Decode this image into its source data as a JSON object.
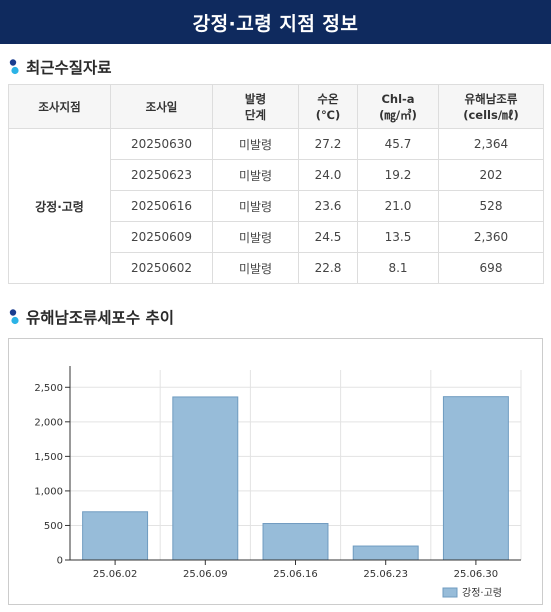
{
  "page": {
    "title": "강정·고령 지점 정보"
  },
  "sections": {
    "latest_title": "최근수질자료",
    "trend_title": "유해남조류세포수 추이"
  },
  "table": {
    "headers": [
      [
        "조사지점"
      ],
      [
        "조사일"
      ],
      [
        "발령",
        "단계"
      ],
      [
        "수온",
        "(℃)"
      ],
      [
        "Chl-a",
        "(㎎/㎥)"
      ],
      [
        "유해남조류",
        "(cells/㎖)"
      ]
    ],
    "site": "강정·고령",
    "rows": [
      {
        "date": "20250630",
        "stage": "미발령",
        "temp": "27.2",
        "chla": "45.7",
        "cells": "2,364"
      },
      {
        "date": "20250623",
        "stage": "미발령",
        "temp": "24.0",
        "chla": "19.2",
        "cells": "202"
      },
      {
        "date": "20250616",
        "stage": "미발령",
        "temp": "23.6",
        "chla": "21.0",
        "cells": "528"
      },
      {
        "date": "20250609",
        "stage": "미발령",
        "temp": "24.5",
        "chla": "13.5",
        "cells": "2,360"
      },
      {
        "date": "20250602",
        "stage": "미발령",
        "temp": "22.8",
        "chla": "8.1",
        "cells": "698"
      }
    ]
  },
  "colors": {
    "header_bg": "#0f2a5e",
    "bar_fill": "#97bcd9",
    "bar_stroke": "#6f9bc0",
    "bullet_top": "#1a3d8f",
    "bullet_bottom": "#2bb3e6"
  },
  "chart_data": {
    "type": "bar",
    "categories": [
      "25.06.02",
      "25.06.09",
      "25.06.16",
      "25.06.23",
      "25.06.30"
    ],
    "series": [
      {
        "name": "강정·고령",
        "values": [
          698,
          2360,
          528,
          202,
          2364
        ]
      }
    ],
    "yticks": [
      0,
      500,
      1000,
      1500,
      2000,
      2500
    ],
    "ytick_labels": [
      "0",
      "500",
      "1,000",
      "1,500",
      "2,000",
      "2,500"
    ],
    "ylim": [
      0,
      2750
    ],
    "grid": true,
    "legend_position": "bottom-right",
    "title": "",
    "xlabel": "",
    "ylabel": ""
  }
}
